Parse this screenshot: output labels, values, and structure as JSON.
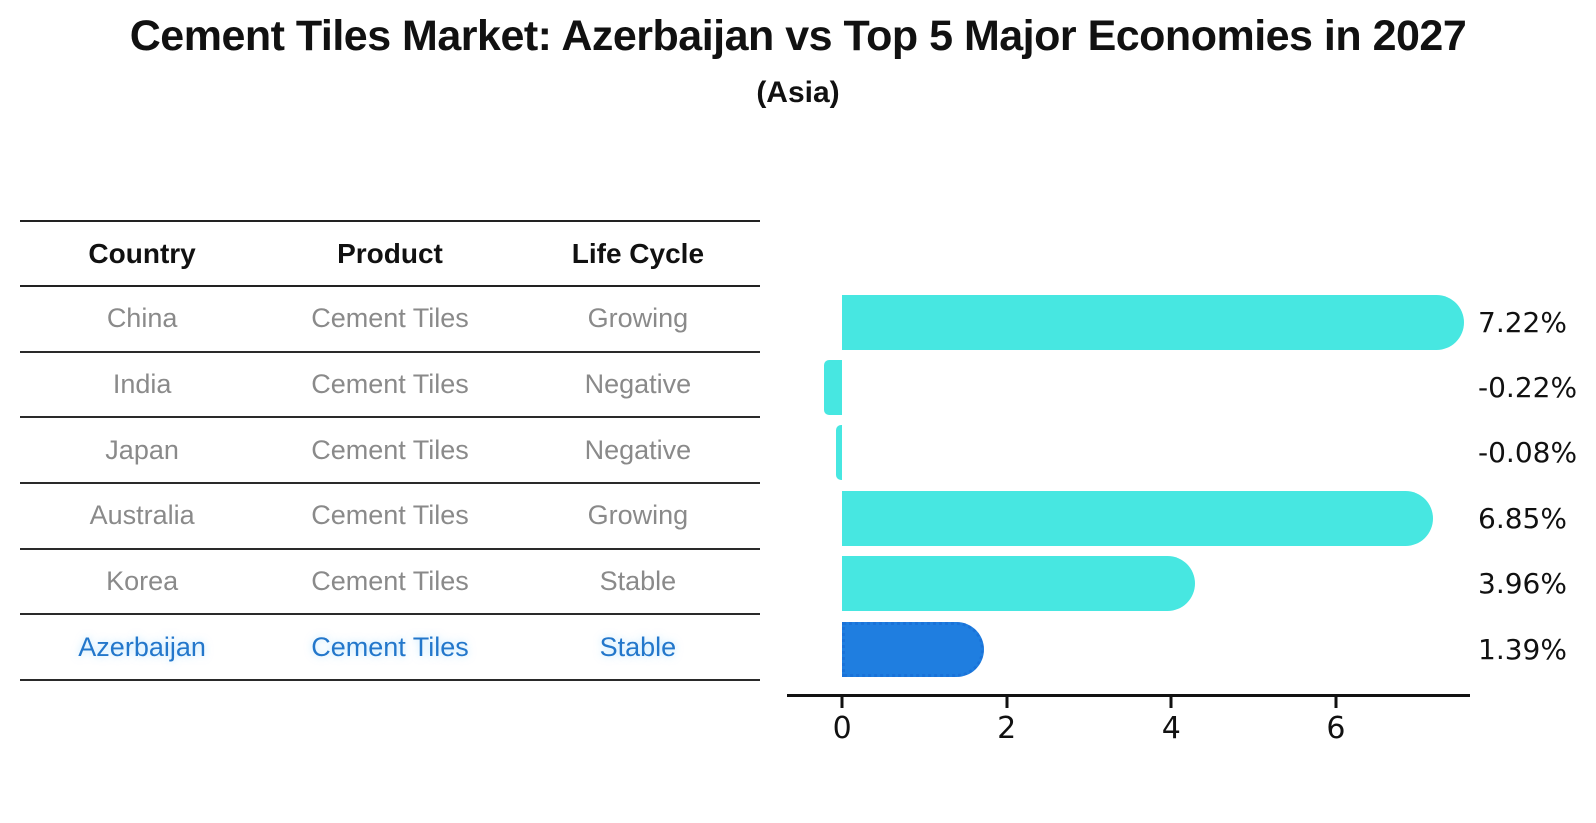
{
  "title": "Cement Tiles Market: Azerbaijan vs Top 5 Major Economies in 2027",
  "subtitle": "(Asia)",
  "table": {
    "headers": [
      "Country",
      "Product",
      "Life Cycle"
    ],
    "rows": [
      {
        "country": "China",
        "product": "Cement Tiles",
        "life_cycle": "Growing",
        "highlight": false
      },
      {
        "country": "India",
        "product": "Cement Tiles",
        "life_cycle": "Negative",
        "highlight": false
      },
      {
        "country": "Japan",
        "product": "Cement Tiles",
        "life_cycle": "Negative",
        "highlight": false
      },
      {
        "country": "Australia",
        "product": "Cement Tiles",
        "life_cycle": "Growing",
        "highlight": false
      },
      {
        "country": "Korea",
        "product": "Cement Tiles",
        "life_cycle": "Stable",
        "highlight": false
      },
      {
        "country": "Azerbaijan",
        "product": "Cement Tiles",
        "life_cycle": "Stable",
        "highlight": true
      }
    ]
  },
  "chart_data": {
    "type": "bar",
    "orientation": "horizontal",
    "title": "Cement Tiles Market: Azerbaijan vs Top 5 Major Economies in 2027",
    "subtitle": "(Asia)",
    "categories": [
      "China",
      "India",
      "Japan",
      "Australia",
      "Korea",
      "Azerbaijan"
    ],
    "values": [
      7.22,
      -0.22,
      -0.08,
      6.85,
      3.96,
      1.39
    ],
    "value_labels": [
      "7.22%",
      "-0.22%",
      "-0.08%",
      "6.85%",
      "3.96%",
      "1.39%"
    ],
    "highlight_category": "Azerbaijan",
    "highlight_index": 5,
    "x_ticks": [
      0,
      2,
      4,
      6
    ],
    "xlim": [
      -0.67,
      7.63
    ],
    "xlabel": "",
    "ylabel": "",
    "grid": false,
    "legend": false
  },
  "colors": {
    "bar_default": "#47e7e1",
    "bar_highlight": "#1f7ee0",
    "bar_highlight_border": "#1a72d8",
    "highlight_text": "#2377cb",
    "table_text": "#8a8a8a",
    "heading_text": "#111111",
    "axis": "#111111"
  }
}
